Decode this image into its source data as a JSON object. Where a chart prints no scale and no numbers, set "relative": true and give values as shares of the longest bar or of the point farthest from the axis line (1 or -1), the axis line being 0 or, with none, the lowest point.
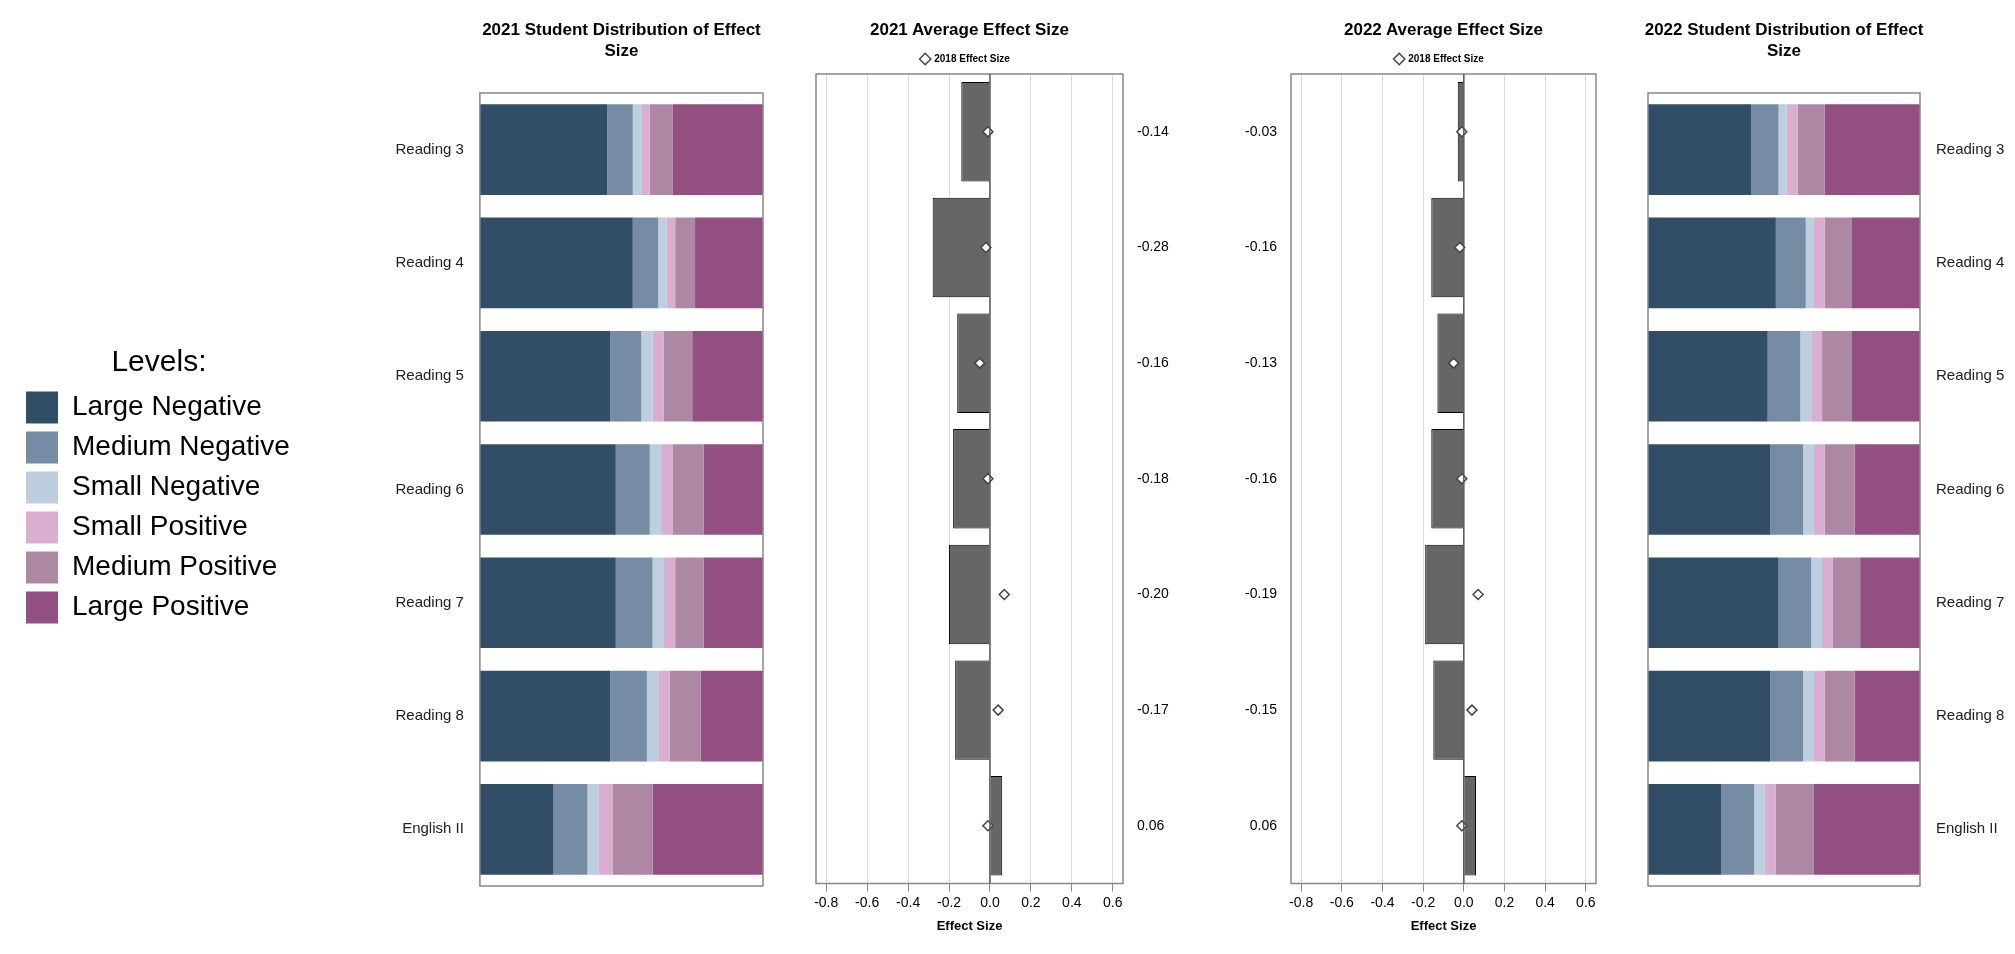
{
  "chart_data": [
    {
      "type": "bar",
      "orientation": "horizontal",
      "stacked": true,
      "relative": true,
      "title": "2021 Student Distribution of Effect Size",
      "legend_title": "Levels:",
      "legend": "left",
      "tick_labels": "y",
      "categories": [
        "Reading 3",
        "Reading 4",
        "Reading 5",
        "Reading 6",
        "Reading 7",
        "Reading 8",
        "English II"
      ],
      "series": [
        {
          "name": "Large Negative",
          "color": "#324e66",
          "values": [
            0.45,
            0.54,
            0.46,
            0.48,
            0.48,
            0.46,
            0.26
          ]
        },
        {
          "name": "Medium Negative",
          "color": "#768ca4",
          "values": [
            0.09,
            0.09,
            0.11,
            0.12,
            0.13,
            0.13,
            0.12
          ]
        },
        {
          "name": "Small Negative",
          "color": "#bccee0",
          "values": [
            0.03,
            0.03,
            0.04,
            0.04,
            0.04,
            0.04,
            0.04
          ]
        },
        {
          "name": "Small Positive",
          "color": "#d9aed0",
          "values": [
            0.03,
            0.03,
            0.04,
            0.04,
            0.04,
            0.04,
            0.05
          ]
        },
        {
          "name": "Medium Positive",
          "color": "#ad88a4",
          "values": [
            0.08,
            0.07,
            0.1,
            0.11,
            0.1,
            0.11,
            0.14
          ]
        },
        {
          "name": "Large Positive",
          "color": "#944f82",
          "values": [
            0.32,
            0.24,
            0.25,
            0.21,
            0.21,
            0.22,
            0.39
          ]
        }
      ]
    },
    {
      "type": "bar",
      "orientation": "horizontal",
      "title": "2021 Average Effect Size",
      "xlabel": "Effect Size",
      "legend": "top",
      "grid": "x",
      "tick_labels": "x",
      "marker": "diamond",
      "xlim": [
        -0.85,
        0.65
      ],
      "xticks": [
        -0.8,
        -0.6,
        -0.4,
        -0.2,
        {
          "value": 0,
          "label": "0.0"
        },
        0.2,
        0.4,
        0.6
      ],
      "ref_lines": [
        {
          "axis": "x",
          "value": 0,
          "color": "#555555"
        }
      ],
      "series": [
        {
          "color": "#666666",
          "values": [
            -0.14,
            -0.28,
            -0.16,
            -0.18,
            -0.2,
            -0.17,
            0.06
          ],
          "value_labels": [
            "-0.14",
            "-0.28",
            "-0.16",
            "-0.18",
            "-0.20",
            "-0.17",
            "0.06"
          ]
        },
        {
          "type": "scatter",
          "name": "2018 Effect Size",
          "color": "#444444",
          "values": [
            -0.01,
            -0.02,
            -0.05,
            -0.01,
            0.07,
            0.04,
            -0.01
          ]
        }
      ]
    },
    {
      "type": "bar",
      "orientation": "horizontal",
      "title": "2022 Average Effect Size",
      "xlabel": "Effect Size",
      "legend": "top",
      "grid": "x",
      "tick_labels": "x",
      "marker": "diamond",
      "xlim": [
        -0.85,
        0.65
      ],
      "xticks": [
        -0.8,
        -0.6,
        -0.4,
        -0.2,
        {
          "value": 0,
          "label": "0.0"
        },
        0.2,
        0.4,
        0.6
      ],
      "ref_lines": [
        {
          "axis": "x",
          "value": 0,
          "color": "#555555"
        }
      ],
      "series": [
        {
          "color": "#666666",
          "values": [
            -0.03,
            -0.16,
            -0.13,
            -0.16,
            -0.19,
            -0.15,
            0.06
          ],
          "value_labels": [
            "-0.03",
            "-0.16",
            "-0.13",
            "-0.16",
            "-0.19",
            "-0.15",
            "0.06"
          ]
        },
        {
          "type": "scatter",
          "name": "2018 Effect Size",
          "color": "#444444",
          "values": [
            -0.01,
            -0.02,
            -0.05,
            -0.01,
            0.07,
            0.04,
            -0.01
          ]
        }
      ]
    },
    {
      "type": "bar",
      "orientation": "horizontal",
      "stacked": true,
      "relative": true,
      "title": "2022 Student Distribution of Effect Size",
      "tick_labels": "y",
      "categories": [
        "Reading 3",
        "Reading 4",
        "Reading 5",
        "Reading 6",
        "Reading 7",
        "Reading 8",
        "English II"
      ],
      "series": [
        {
          "color": "#324e66",
          "values": [
            0.38,
            0.47,
            0.44,
            0.45,
            0.48,
            0.45,
            0.27
          ]
        },
        {
          "color": "#768ca4",
          "values": [
            0.1,
            0.11,
            0.12,
            0.12,
            0.12,
            0.12,
            0.12
          ]
        },
        {
          "color": "#bccee0",
          "values": [
            0.03,
            0.03,
            0.04,
            0.04,
            0.04,
            0.04,
            0.04
          ]
        },
        {
          "color": "#d9aed0",
          "values": [
            0.04,
            0.04,
            0.04,
            0.04,
            0.04,
            0.04,
            0.04
          ]
        },
        {
          "color": "#ad88a4",
          "values": [
            0.1,
            0.1,
            0.11,
            0.11,
            0.1,
            0.11,
            0.14
          ]
        },
        {
          "color": "#944f82",
          "values": [
            0.35,
            0.25,
            0.25,
            0.24,
            0.22,
            0.24,
            0.39
          ]
        }
      ]
    }
  ]
}
